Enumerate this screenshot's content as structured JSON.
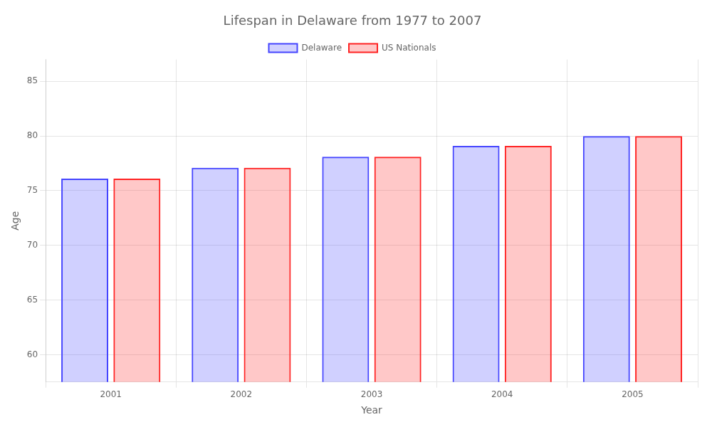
{
  "chart_data": {
    "type": "bar",
    "title": "Lifespan in Delaware from 1977 to 2007",
    "xlabel": "Year",
    "ylabel": "Age",
    "categories": [
      "2001",
      "2002",
      "2003",
      "2004",
      "2005"
    ],
    "series": [
      {
        "name": "Delaware",
        "color": "#4444ff",
        "values": [
          76.1,
          77.1,
          78.1,
          79.1,
          80.0
        ]
      },
      {
        "name": "US Nationals",
        "color": "#ff2222",
        "values": [
          76.1,
          77.1,
          78.1,
          79.1,
          80.0
        ]
      }
    ],
    "ylim": [
      57.5,
      87
    ],
    "yticks": [
      60,
      65,
      70,
      75,
      80,
      85
    ],
    "grid": true,
    "legend": "top"
  }
}
